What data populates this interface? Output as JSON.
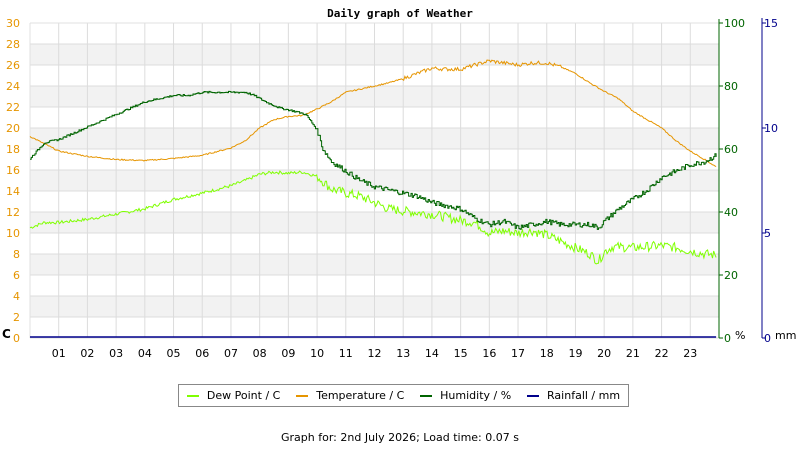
{
  "chart_data": {
    "type": "line",
    "title": "Daily graph of Weather",
    "x_tick_labels": [
      "01",
      "02",
      "03",
      "04",
      "05",
      "06",
      "07",
      "08",
      "09",
      "10",
      "11",
      "12",
      "13",
      "14",
      "15",
      "16",
      "17",
      "18",
      "19",
      "20",
      "21",
      "22",
      "23"
    ],
    "x_hours_range": [
      0,
      24
    ],
    "axes": {
      "left": {
        "unit_label": "C",
        "ylim": [
          0,
          30
        ],
        "ticks": [
          0,
          2,
          4,
          6,
          8,
          10,
          12,
          14,
          16,
          18,
          20,
          22,
          24,
          26,
          28,
          30
        ],
        "color": "#e69500"
      },
      "right1": {
        "unit_label": "%",
        "ylim": [
          0,
          100
        ],
        "ticks": [
          0,
          20,
          40,
          60,
          80,
          100
        ],
        "color": "#006400"
      },
      "right2": {
        "unit_label": "mm",
        "ylim": [
          0,
          15
        ],
        "ticks": [
          0,
          5,
          10,
          15
        ],
        "color": "#00008b"
      }
    },
    "grid": true,
    "legend_position": "bottom",
    "series": [
      {
        "name": "Dew Point / C",
        "axis": "left",
        "color": "#7fff00",
        "x": [
          0,
          0.5,
          1,
          2,
          3,
          4,
          5,
          6,
          7,
          7.5,
          8,
          8.5,
          9,
          9.5,
          10,
          10.5,
          11,
          11.5,
          12,
          12.5,
          13,
          14,
          15,
          15.5,
          16,
          16.5,
          17,
          17.5,
          18,
          18.5,
          19,
          19.5,
          19.8,
          20,
          20.3,
          21,
          22,
          22.5,
          23,
          23.5,
          23.9
        ],
        "y": [
          10.5,
          11.0,
          11.0,
          11.3,
          11.8,
          12.3,
          13.2,
          13.8,
          14.5,
          15.0,
          15.6,
          15.8,
          15.7,
          15.8,
          15.4,
          14.2,
          13.8,
          13.5,
          12.9,
          12.3,
          12.1,
          11.8,
          11.2,
          11.0,
          10.0,
          10.2,
          10.0,
          10.2,
          9.8,
          9.2,
          8.6,
          8.0,
          7.3,
          8.2,
          8.7,
          8.6,
          8.8,
          8.6,
          8.3,
          8.0,
          7.9
        ]
      },
      {
        "name": "Temperature / C",
        "axis": "left",
        "color": "#e69500",
        "x": [
          0,
          0.5,
          1,
          2,
          3,
          4,
          5,
          6,
          7,
          7.5,
          8,
          8.5,
          9,
          9.5,
          10,
          10.5,
          11,
          11.5,
          12,
          12.5,
          13,
          13.5,
          14,
          14.5,
          15,
          15.5,
          16,
          16.5,
          17,
          17.5,
          18,
          18.5,
          19,
          19.5,
          20,
          20.5,
          21,
          21.5,
          22,
          22.5,
          23,
          23.5,
          23.9
        ],
        "y": [
          19.2,
          18.5,
          17.8,
          17.3,
          17.0,
          16.9,
          17.1,
          17.4,
          18.1,
          18.8,
          20.0,
          20.8,
          21.1,
          21.2,
          21.8,
          22.5,
          23.4,
          23.7,
          24.0,
          24.3,
          24.7,
          25.2,
          25.7,
          25.6,
          25.6,
          26.0,
          26.4,
          26.2,
          26.0,
          26.2,
          26.2,
          25.8,
          25.2,
          24.3,
          23.5,
          22.8,
          21.6,
          20.8,
          20.0,
          18.8,
          17.8,
          17.0,
          16.3
        ]
      },
      {
        "name": "Humidity / %",
        "axis": "right1",
        "color": "#006400",
        "x": [
          0,
          0.5,
          1,
          1.5,
          2,
          2.5,
          3,
          3.5,
          4,
          4.5,
          5,
          5.5,
          6,
          6.5,
          7,
          7.5,
          7.8,
          8.2,
          8.7,
          9.2,
          9.6,
          10,
          10.2,
          10.5,
          11,
          11.5,
          12,
          12.5,
          13,
          13.5,
          14,
          14.5,
          15,
          15.5,
          16,
          16.5,
          17,
          17.5,
          18,
          18.5,
          19,
          19.5,
          19.8,
          20,
          20.5,
          21,
          21.5,
          22,
          22.5,
          23,
          23.5,
          23.9
        ],
        "y": [
          57,
          62,
          63,
          65,
          67,
          69,
          71,
          73,
          75,
          76,
          77,
          77,
          78,
          78,
          78,
          78,
          77,
          75,
          73,
          72,
          71,
          66,
          60,
          56,
          53,
          50,
          48,
          47,
          46,
          45,
          43,
          42,
          41,
          38,
          36,
          37,
          35,
          36,
          37,
          36,
          36,
          36,
          35,
          37,
          41,
          44,
          47,
          51,
          53,
          55,
          56,
          58
        ]
      },
      {
        "name": "Rainfall / mm",
        "axis": "right2",
        "color": "#00008b",
        "x": [
          0,
          23.9
        ],
        "y": [
          0,
          0
        ]
      }
    ],
    "footer": "Graph for: 2nd July 2026; Load time: 0.07 s"
  }
}
